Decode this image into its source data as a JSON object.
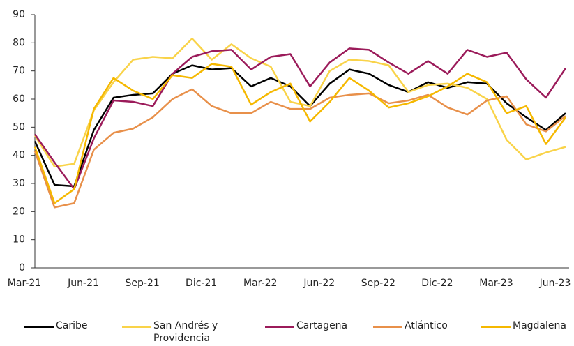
{
  "chart_data": {
    "type": "line",
    "categories": [
      "Mar-21",
      null,
      null,
      "Jun-21",
      null,
      null,
      "Sep-21",
      null,
      null,
      "Dic-21",
      null,
      null,
      "Mar-22",
      null,
      null,
      "Jun-22",
      null,
      null,
      "Sep-22",
      null,
      null,
      "Dic-22",
      null,
      null,
      "Mar-23",
      null,
      null,
      "Jun-23"
    ],
    "ylim": [
      0,
      90
    ],
    "yticks": [
      0,
      10,
      20,
      30,
      40,
      50,
      60,
      70,
      80,
      90
    ],
    "grid": false,
    "legend": "bottom",
    "series": [
      {
        "name": "Caribe",
        "color": "#000000",
        "values": [
          45,
          29.5,
          29,
          49,
          60.5,
          61.5,
          62,
          69,
          72,
          70.5,
          71,
          64.5,
          67.5,
          64.5,
          57.5,
          65.5,
          70.5,
          69,
          65,
          62.5,
          66,
          64,
          66,
          65.5,
          58.5,
          53.5,
          49,
          55
        ]
      },
      {
        "name": "San Andrés y Providencia",
        "color": "#f9d349",
        "values": [
          47,
          36,
          37,
          56,
          66,
          74,
          75,
          74.5,
          81.5,
          74,
          79.5,
          74.5,
          71.5,
          59,
          57.5,
          70,
          74,
          73.5,
          72,
          62.5,
          65,
          65.5,
          64,
          60,
          45.5,
          38.5,
          41,
          43
        ]
      },
      {
        "name": "Cartagena",
        "color": "#9b1b5a",
        "values": [
          47.5,
          37.5,
          28,
          46,
          59.5,
          59,
          57.5,
          69,
          75,
          77,
          77.5,
          70.5,
          75,
          76,
          64.5,
          73,
          78,
          77.5,
          73,
          69,
          73.5,
          69,
          77.5,
          75,
          76.5,
          67,
          60.5,
          71
        ]
      },
      {
        "name": "Atlántico",
        "color": "#e8904a",
        "values": [
          41.5,
          21.5,
          23,
          42,
          48,
          49.5,
          53.5,
          60,
          63.5,
          57.5,
          55,
          55,
          59,
          56.5,
          56.5,
          60.5,
          61.5,
          62,
          58.5,
          59.5,
          61.5,
          57,
          54.5,
          59.5,
          61,
          51,
          48.5,
          54
        ]
      },
      {
        "name": "Magdalena",
        "color": "#f5b800",
        "values": [
          43,
          23,
          28,
          56.5,
          67.5,
          63,
          60,
          68.5,
          67.5,
          72.5,
          71.5,
          58,
          62.5,
          65.5,
          52,
          59,
          67.5,
          63,
          57,
          58.5,
          61,
          64.5,
          69,
          66,
          55,
          57.5,
          44,
          53.5
        ]
      }
    ]
  }
}
